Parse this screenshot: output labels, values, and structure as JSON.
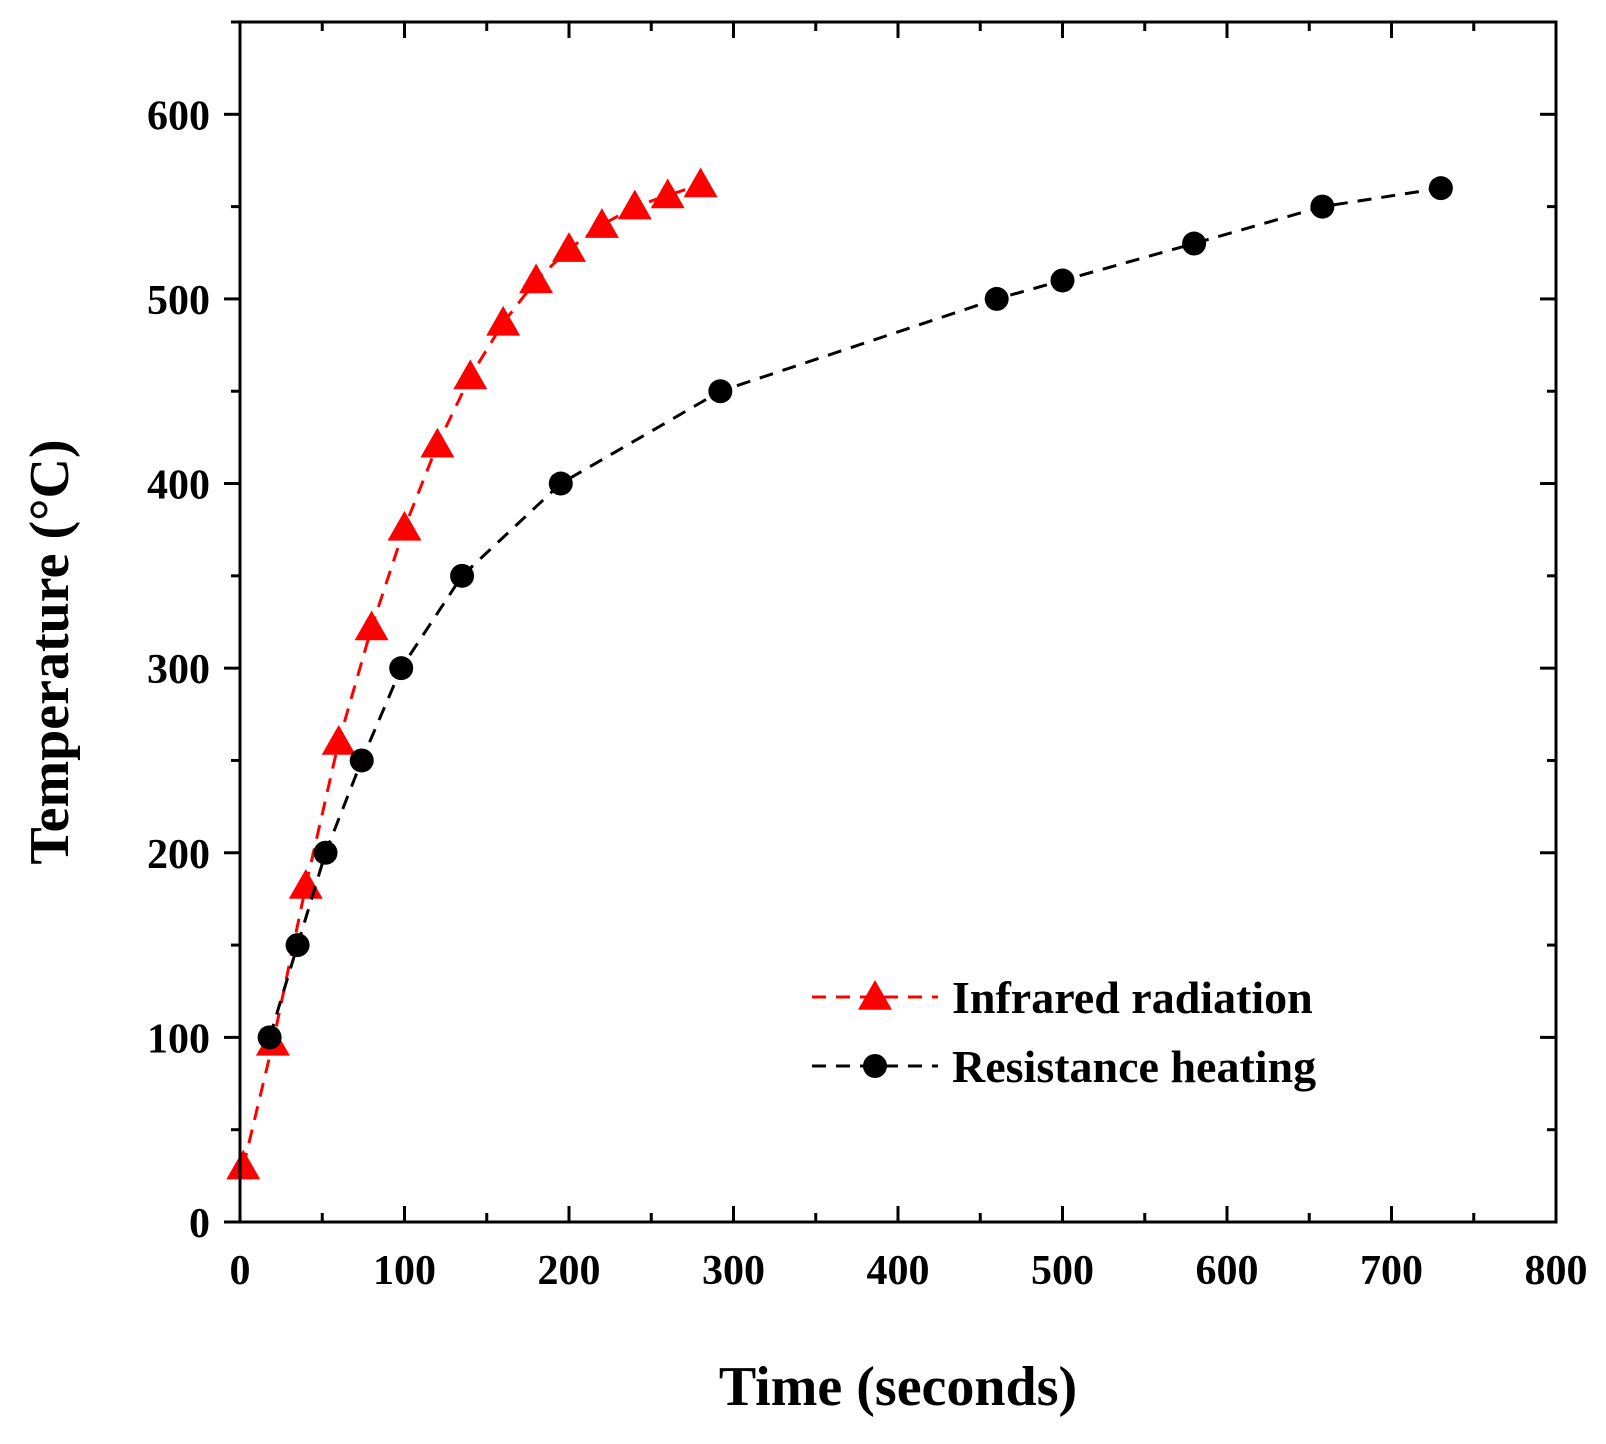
{
  "chart_data": {
    "type": "line",
    "title": "",
    "xlabel": "Time (seconds)",
    "ylabel": "Temperature (°C)",
    "xlim": [
      0,
      800
    ],
    "ylim": [
      0,
      650
    ],
    "xticks": [
      0,
      100,
      200,
      300,
      400,
      500,
      600,
      700,
      800
    ],
    "yticks": [
      0,
      100,
      200,
      300,
      400,
      500,
      600
    ],
    "xtick_labels": [
      "0",
      "100",
      "200",
      "300",
      "400",
      "500",
      "600",
      "700",
      "800"
    ],
    "ytick_labels": [
      "0",
      "100",
      "200",
      "300",
      "400",
      "500",
      "600"
    ],
    "grid": false,
    "legend_position": "bottom-right",
    "series": [
      {
        "name": "Infrared radiation",
        "color": "#ff0000",
        "marker": "triangle",
        "line_style": "dashed",
        "x": [
          2,
          20,
          40,
          60,
          80,
          100,
          120,
          140,
          160,
          180,
          200,
          220,
          240,
          260,
          280
        ],
        "y": [
          30,
          97,
          182,
          260,
          322,
          376,
          421,
          458,
          487,
          510,
          527,
          540,
          550,
          556,
          562
        ]
      },
      {
        "name": "Resistance heating",
        "color": "#000000",
        "marker": "circle",
        "line_style": "dashed",
        "x": [
          18,
          35,
          52,
          74,
          98,
          135,
          195,
          292,
          460,
          500,
          580,
          658,
          730
        ],
        "y": [
          100,
          150,
          200,
          250,
          300,
          350,
          400,
          450,
          500,
          510,
          530,
          550,
          560
        ]
      }
    ]
  }
}
